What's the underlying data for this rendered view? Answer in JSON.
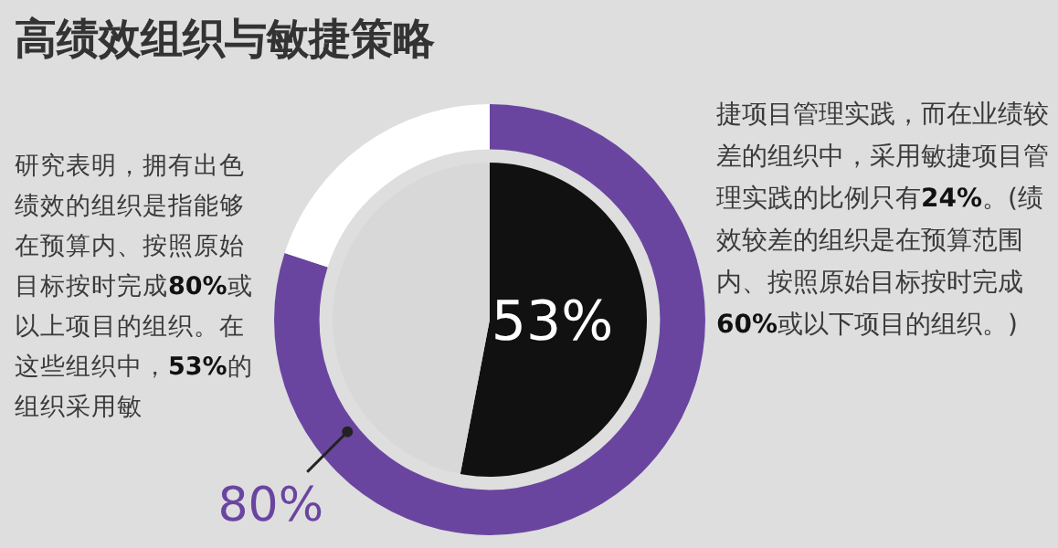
{
  "chart_data": [
    {
      "type": "donut",
      "title": "高绩效组织与敏捷策略",
      "categories": [
        null,
        null
      ],
      "values": [
        80,
        20
      ],
      "colors": [
        "#6a45a0",
        "#ffffff"
      ],
      "value_labels": [
        "80%",
        null
      ],
      "annotations": [
        "研究表明，拥有出色绩效的组织是指能够在预算内、按照原始目标按时完成80%或以上项目的组织。在这些组织中，53%的组织采用敏",
        "捷项目管理实践，而在业绩较差的组织中，采用敏捷项目管理实践的比例只有24%。(绩效较差的组织是在预算范围内、按照原始目标按时完成60%或以下项目的组织。)"
      ]
    },
    {
      "type": "pie",
      "categories": [
        null,
        null
      ],
      "values": [
        53,
        47
      ],
      "colors": [
        "#111111",
        "#d8d8d8"
      ],
      "value_labels": [
        "53%",
        null
      ]
    }
  ]
}
